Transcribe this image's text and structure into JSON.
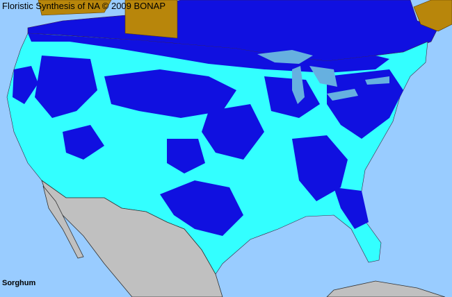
{
  "header": {
    "title": "Floristic Synthesis of NA © 2009 BONAP"
  },
  "taxon": {
    "name": "Sorghum"
  },
  "colors": {
    "water": "#99ccff",
    "present_native": "#1010e0",
    "present_adventive": "#33ffff",
    "not_native_region": "#b8860b",
    "outside_range": "#c0c0c0",
    "county_borders": "#5a2a2a"
  }
}
